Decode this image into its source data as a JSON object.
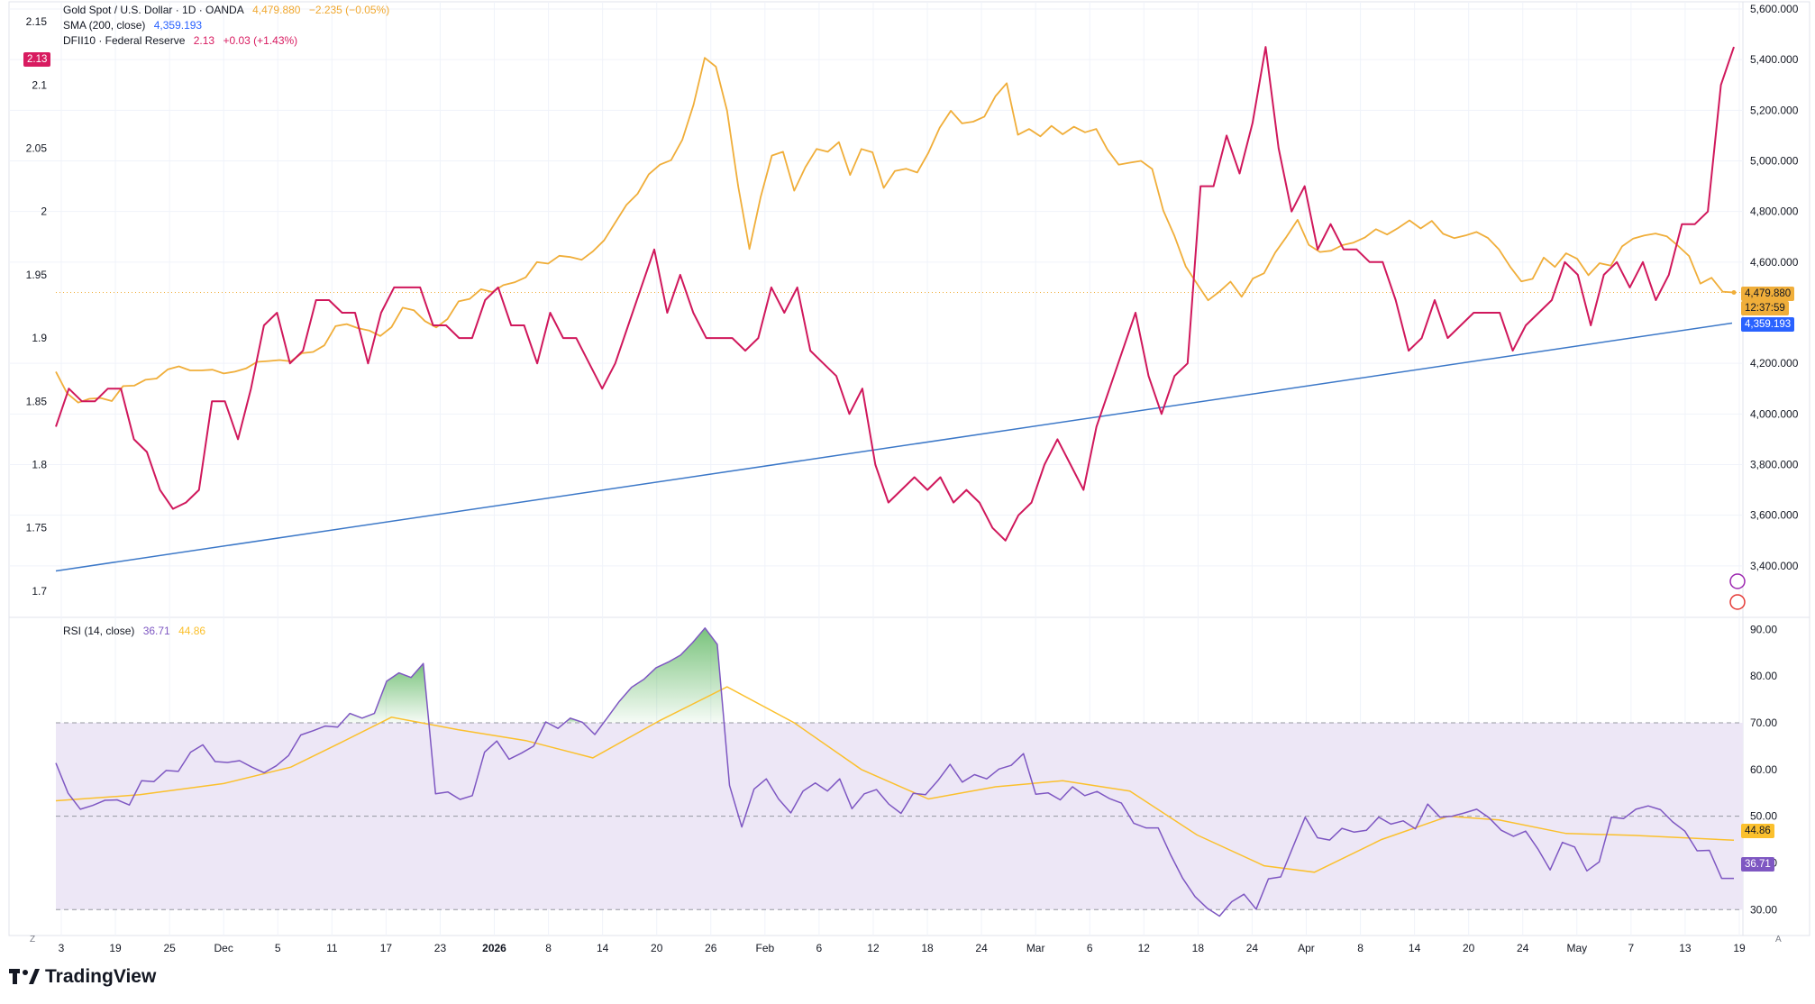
{
  "legend": {
    "main": {
      "title": "Gold Spot / U.S. Dollar · 1D · OANDA",
      "value": "4,479.880",
      "change": "−2.235 (−0.05%)"
    },
    "sma": {
      "title": "SMA (200, close)",
      "value": "4,359.193"
    },
    "dfii": {
      "title": "DFII10 · Federal Reserve",
      "value": "2.13",
      "change": "+0.03 (+1.43%)"
    },
    "rsi": {
      "title": "RSI (14, close)",
      "value": "36.71",
      "ma_value": "44.86"
    }
  },
  "badges": {
    "left_dfii": "2.13",
    "price": "4,479.880",
    "countdown": "12:37:59",
    "sma": "4,359.193",
    "rsi_ma": "44.86",
    "rsi": "36.71"
  },
  "brand": "TradingView",
  "corner_left": "Z",
  "corner_right": "A",
  "colors": {
    "gold": "#f0ae3a",
    "sma": "#3c78c8",
    "dfii": "#d0185c",
    "rsi": "#7e57c2",
    "rsi_ma": "#fbc02d",
    "rsi_band_fill": "#ede7f6",
    "overbought_fill": "#4caf50",
    "grid": "#f0f3fa"
  },
  "chart_data": [
    {
      "type": "line",
      "name": "price-pane",
      "x_ticks": [
        "3",
        "19",
        "25",
        "Dec",
        "5",
        "11",
        "17",
        "23",
        "2026",
        "8",
        "14",
        "20",
        "26",
        "Feb",
        "6",
        "12",
        "18",
        "24",
        "Mar",
        "6",
        "12",
        "18",
        "24",
        "Apr",
        "8",
        "14",
        "20",
        "24",
        "May",
        "7",
        "13",
        "19"
      ],
      "y_right": {
        "ticks": [
          "5,600.000",
          "5,400.000",
          "5,200.000",
          "5,000.000",
          "4,800.000",
          "4,600.000",
          "4,200.000",
          "4,000.000",
          "3,800.000",
          "3,600.000",
          "3,400.000"
        ],
        "range": [
          3200,
          5600
        ]
      },
      "y_left": {
        "ticks": [
          "2.15",
          "2.1",
          "2.05",
          "2",
          "1.95",
          "1.9",
          "1.85",
          "1.8",
          "1.75",
          "1.7"
        ],
        "range": [
          1.68,
          2.16
        ]
      },
      "series": [
        {
          "name": "Gold Spot / U.S. Dollar",
          "values": [
            4167,
            4082,
            4045,
            4060,
            4063,
            4051,
            4110,
            4112,
            4135,
            4140,
            4176,
            4188,
            4172,
            4172,
            4175,
            4160,
            4167,
            4180,
            4206,
            4209,
            4213,
            4208,
            4240,
            4245,
            4271,
            4347,
            4355,
            4339,
            4330,
            4308,
            4343,
            4420,
            4410,
            4367,
            4342,
            4375,
            4445,
            4455,
            4493,
            4482,
            4509,
            4520,
            4540,
            4600,
            4594,
            4625,
            4620,
            4609,
            4642,
            4686,
            4756,
            4826,
            4870,
            4947,
            4985,
            5003,
            5083,
            5222,
            5407,
            5372,
            5198,
            4898,
            4652,
            4856,
            5021,
            5036,
            4882,
            4975,
            5047,
            5036,
            5074,
            4944,
            5047,
            5034,
            4893,
            4960,
            4969,
            4954,
            5032,
            5131,
            5198,
            5148,
            5155,
            5175,
            5256,
            5307,
            5103,
            5126,
            5097,
            5138,
            5105,
            5135,
            5113,
            5126,
            5044,
            4985,
            4993,
            5000,
            4968,
            4803,
            4703,
            4583,
            4515,
            4449,
            4483,
            4523,
            4463,
            4535,
            4556,
            4638,
            4700,
            4767,
            4668,
            4640,
            4645,
            4667,
            4677,
            4697,
            4730,
            4709,
            4735,
            4765,
            4733,
            4763,
            4712,
            4695,
            4705,
            4719,
            4696,
            4650,
            4582,
            4524,
            4534,
            4618,
            4581,
            4635,
            4613,
            4548,
            4596,
            4586,
            4662,
            4693,
            4705,
            4713,
            4702,
            4665,
            4624,
            4515,
            4538,
            4483,
            4480
          ]
        },
        {
          "name": "SMA (200, close)",
          "values_linear": [
            3380,
            4359
          ]
        },
        {
          "name": "DFII10 · Federal Reserve",
          "values": [
            1.83,
            1.86,
            1.85,
            1.85,
            1.86,
            1.86,
            1.82,
            1.81,
            1.78,
            1.765,
            1.77,
            1.78,
            1.85,
            1.85,
            1.82,
            1.86,
            1.91,
            1.92,
            1.88,
            1.89,
            1.93,
            1.93,
            1.92,
            1.92,
            1.88,
            1.92,
            1.94,
            1.94,
            1.94,
            1.91,
            1.91,
            1.9,
            1.9,
            1.93,
            1.94,
            1.91,
            1.91,
            1.88,
            1.92,
            1.9,
            1.9,
            1.88,
            1.86,
            1.88,
            1.91,
            1.94,
            1.97,
            1.92,
            1.95,
            1.92,
            1.9,
            1.9,
            1.9,
            1.89,
            1.9,
            1.94,
            1.92,
            1.94,
            1.89,
            1.88,
            1.87,
            1.84,
            1.86,
            1.8,
            1.77,
            1.78,
            1.79,
            1.78,
            1.79,
            1.77,
            1.78,
            1.77,
            1.75,
            1.74,
            1.76,
            1.77,
            1.8,
            1.82,
            1.8,
            1.78,
            1.83,
            1.86,
            1.89,
            1.92,
            1.87,
            1.84,
            1.87,
            1.88,
            2.02,
            2.02,
            2.06,
            2.03,
            2.07,
            2.13,
            2.05,
            2.0,
            2.02,
            1.97,
            1.99,
            1.97,
            1.97,
            1.96,
            1.96,
            1.93,
            1.89,
            1.9,
            1.93,
            1.9,
            1.91,
            1.92,
            1.92,
            1.92,
            1.89,
            1.91,
            1.92,
            1.93,
            1.96,
            1.95,
            1.91,
            1.95,
            1.96,
            1.94,
            1.96,
            1.93,
            1.95,
            1.99,
            1.99,
            2.0,
            2.1,
            2.13
          ]
        }
      ]
    },
    {
      "type": "line",
      "name": "rsi-pane",
      "title": "RSI (14, close)",
      "y_right": {
        "ticks": [
          "90.00",
          "80.00",
          "70.00",
          "60.00",
          "50.00",
          "40.00",
          "30.00"
        ],
        "range": [
          26,
          92
        ]
      },
      "bands": {
        "upper": 70,
        "middle": 50,
        "lower": 30
      },
      "series": [
        {
          "name": "RSI",
          "values": [
            61.4,
            54.9,
            51.5,
            52.3,
            53.4,
            53.5,
            52.4,
            57.6,
            57.4,
            59.8,
            59.6,
            63.7,
            65.3,
            61.7,
            61.5,
            61.9,
            60.5,
            59.3,
            60.8,
            63.0,
            67.4,
            68.3,
            69.3,
            69.1,
            72.0,
            71.0,
            72.0,
            78.9,
            80.7,
            79.7,
            82.7,
            54.8,
            55.2,
            53.6,
            54.4,
            63.7,
            66.1,
            62.2,
            63.5,
            65.0,
            70.2,
            68.8,
            71.0,
            70.1,
            67.5,
            71.0,
            74.6,
            77.6,
            79.3,
            81.8,
            83.0,
            84.5,
            87.2,
            90.3,
            86.8,
            56.6,
            47.7,
            55.8,
            58.0,
            53.7,
            50.7,
            55.4,
            57.1,
            55.4,
            58.0,
            51.6,
            54.8,
            55.7,
            52.6,
            50.6,
            54.9,
            54.6,
            57.6,
            61.1,
            57.3,
            58.9,
            58.0,
            60.1,
            60.9,
            63.4,
            54.7,
            55.0,
            53.5,
            56.3,
            54.4,
            55.3,
            53.8,
            52.8,
            48.5,
            47.5,
            47.5,
            41.8,
            36.7,
            32.8,
            30.3,
            28.6,
            31.7,
            33.3,
            30.1,
            36.6,
            37.0,
            43.4,
            49.8,
            45.4,
            44.9,
            47.4,
            46.6,
            47.0,
            49.8,
            48.3,
            49.0,
            47.3,
            52.6,
            49.8,
            50.0,
            50.7,
            51.5,
            49.7,
            47.0,
            45.7,
            46.8,
            43.0,
            38.5,
            44.4,
            43.4,
            38.3,
            40.2,
            49.8,
            49.5,
            51.5,
            52.2,
            51.4,
            48.8,
            46.8,
            42.6,
            42.7,
            36.7,
            36.7
          ]
        },
        {
          "name": "RSI MA",
          "values_linear_points": [
            [
              0,
              53.3
            ],
            [
              10,
              54.6
            ],
            [
              20,
              57.0
            ],
            [
              28,
              60.5
            ],
            [
              34,
              65.8
            ],
            [
              40,
              71.2
            ],
            [
              48,
              68.5
            ],
            [
              56,
              66.2
            ],
            [
              64,
              62.5
            ],
            [
              72,
              70.5
            ],
            [
              80,
              77.7
            ],
            [
              88,
              70.0
            ],
            [
              96,
              60.0
            ],
            [
              104,
              53.7
            ],
            [
              112,
              56.3
            ],
            [
              120,
              57.6
            ],
            [
              128,
              55.4
            ],
            [
              136,
              46.0
            ],
            [
              144,
              39.4
            ],
            [
              150,
              38.0
            ],
            [
              158,
              45.0
            ],
            [
              166,
              50.0
            ],
            [
              172,
              49.2
            ],
            [
              180,
              46.3
            ],
            [
              188,
              45.9
            ],
            [
              200,
              44.86
            ]
          ]
        }
      ]
    }
  ]
}
